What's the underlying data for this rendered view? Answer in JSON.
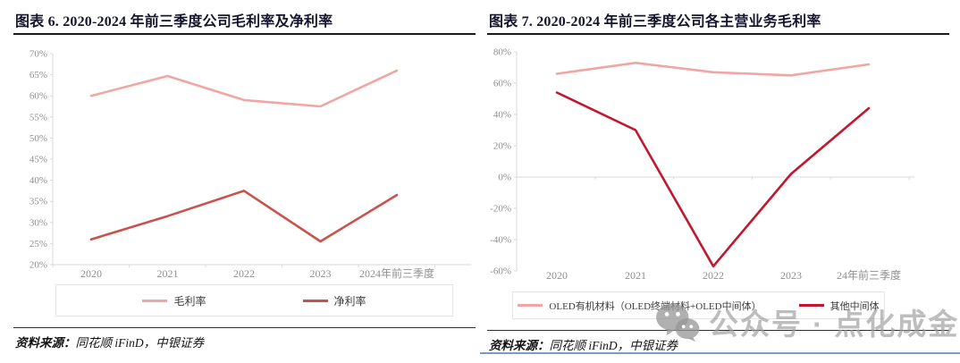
{
  "source": {
    "label": "资料来源：",
    "text": "同花顺 iFinD，中银证券"
  },
  "watermark": {
    "icon": "wechat-icon",
    "text": "公众号 · 点化成金"
  },
  "chart_data": [
    {
      "type": "line",
      "title": "图表 6. 2020-2024 年前三季度公司毛利率及净利率",
      "categories": [
        "2020",
        "2021",
        "2022",
        "2023",
        "2024年前三季度"
      ],
      "series": [
        {
          "name": "毛利率",
          "color": "#f0a6a2",
          "values": [
            60.0,
            64.7,
            59.0,
            57.5,
            66.0
          ]
        },
        {
          "name": "净利率",
          "color": "#c9534c",
          "values": [
            26.0,
            31.5,
            37.5,
            25.5,
            36.5
          ]
        }
      ],
      "ylim": [
        20,
        70
      ],
      "ytick_step": 5,
      "ytick_format": "percent",
      "grid": false,
      "legend_position": "bottom",
      "source": "资料来源：同花顺 iFinD，中银证券"
    },
    {
      "type": "line",
      "title": "图表 7. 2020-2024 年前三季度公司各主营业务毛利率",
      "categories": [
        "2020",
        "2021",
        "2022",
        "2023",
        "24年前三季度"
      ],
      "series": [
        {
          "name": "OLED有机材料（OLED终端材料+OLED中间体）",
          "color": "#f0a6a2",
          "values": [
            66,
            73,
            67,
            65,
            72
          ]
        },
        {
          "name": "其他中间体",
          "color": "#c1182f",
          "values": [
            54,
            30,
            -57,
            2,
            44
          ]
        }
      ],
      "ylim": [
        -60,
        80
      ],
      "ytick_step": 20,
      "ytick_format": "percent",
      "grid": false,
      "legend_position": "bottom",
      "source": "资料来源：同花顺 iFinD，中银证券"
    }
  ]
}
